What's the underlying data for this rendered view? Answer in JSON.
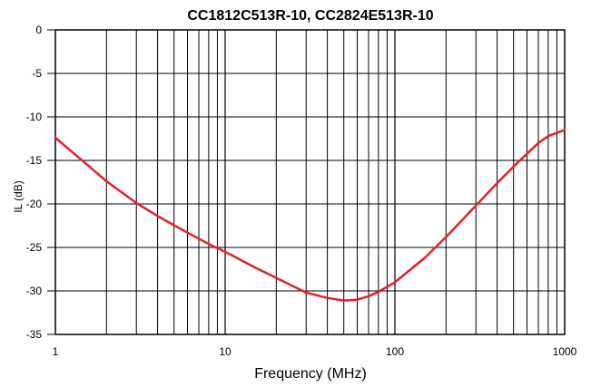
{
  "chart_data": {
    "type": "line",
    "title": "CC1812C513R-10, CC2824E513R-10",
    "xlabel": "Frequency (MHz)",
    "ylabel": "IL (dB)",
    "xscale": "log",
    "xlim": [
      1,
      1000
    ],
    "ylim": [
      -35,
      0
    ],
    "grid": true,
    "x_ticks": [
      {
        "value": 1,
        "label": "1"
      },
      {
        "value": 10,
        "label": "10"
      },
      {
        "value": 100,
        "label": "100"
      },
      {
        "value": 1000,
        "label": "1000"
      }
    ],
    "y_ticks": [
      {
        "value": 0,
        "label": "0"
      },
      {
        "value": -5,
        "label": "-5"
      },
      {
        "value": -10,
        "label": "-10"
      },
      {
        "value": -15,
        "label": "-15"
      },
      {
        "value": -20,
        "label": "-20"
      },
      {
        "value": -25,
        "label": "-25"
      },
      {
        "value": -30,
        "label": "-30"
      },
      {
        "value": -35,
        "label": "-35"
      }
    ],
    "series": [
      {
        "color": "#e3202c",
        "x": [
          1,
          1.5,
          2,
          3,
          4,
          6,
          8,
          10,
          15,
          20,
          30,
          40,
          50,
          60,
          70,
          80,
          100,
          150,
          200,
          300,
          400,
          500,
          700,
          800,
          1000
        ],
        "y": [
          -12.4,
          -15.3,
          -17.4,
          -19.9,
          -21.4,
          -23.3,
          -24.6,
          -25.5,
          -27.3,
          -28.5,
          -30.2,
          -30.8,
          -31.1,
          -31.0,
          -30.6,
          -30.1,
          -29.0,
          -26.2,
          -23.8,
          -20.2,
          -17.6,
          -15.7,
          -13.0,
          -12.2,
          -11.5
        ]
      }
    ]
  }
}
